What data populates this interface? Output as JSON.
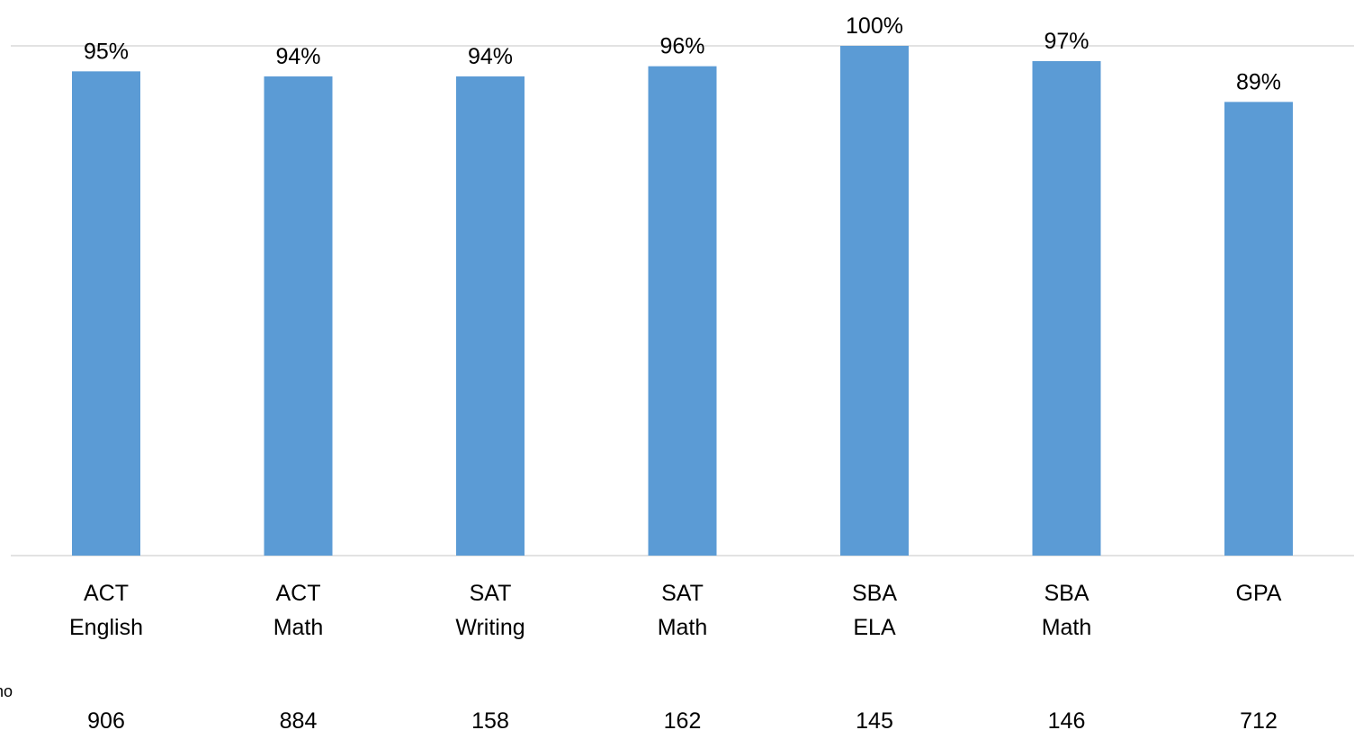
{
  "chart_data": {
    "type": "bar",
    "categories": [
      [
        "ACT",
        "English"
      ],
      [
        "ACT",
        "Math"
      ],
      [
        "SAT",
        "Writing"
      ],
      [
        "SAT",
        "Math"
      ],
      [
        "SBA",
        "ELA"
      ],
      [
        "SBA",
        "Math"
      ],
      [
        "GPA"
      ]
    ],
    "values": [
      95,
      94,
      94,
      96,
      100,
      97,
      89
    ],
    "value_labels": [
      "95%",
      "94%",
      "94%",
      "96%",
      "100%",
      "97%",
      "89%"
    ],
    "counts_label_fragment": "no",
    "counts": [
      "906",
      "884",
      "158",
      "162",
      "145",
      "146",
      "712"
    ],
    "ylim": [
      0,
      100
    ],
    "grid": true,
    "legend": "none",
    "colors": {
      "bar": "#5b9bd5",
      "axis": "#d9d9d9",
      "text": "#000000"
    }
  }
}
